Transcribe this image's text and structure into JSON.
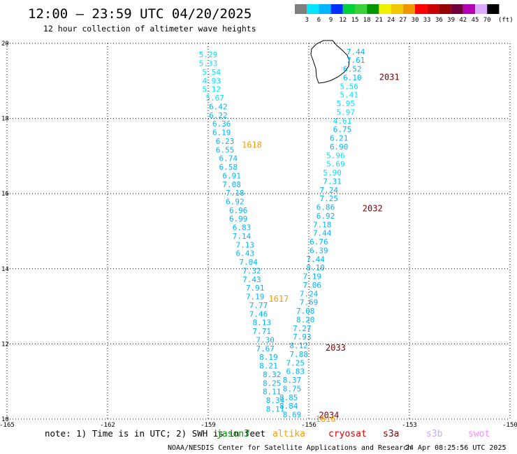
{
  "header": {
    "title": "12:00 — 23:59 UTC 04/20/2025",
    "subtitle": "12 hour collection of altimeter wave heights"
  },
  "colorbar": {
    "unit": "(ft)",
    "ticks": [
      "3",
      "6",
      "9",
      "12",
      "15",
      "18",
      "21",
      "24",
      "27",
      "30",
      "33",
      "36",
      "39",
      "42",
      "45",
      "70"
    ],
    "colors": [
      "#7f7f7f",
      "#00e5ff",
      "#00b4ff",
      "#0030ff",
      "#00d23c",
      "#3cd23c",
      "#009600",
      "#f0f000",
      "#f0c800",
      "#f09600",
      "#ff0000",
      "#c80000",
      "#960000",
      "#6e003c",
      "#b400b4",
      "#dcaaff",
      "#000000"
    ]
  },
  "footer": {
    "note": "note: 1) Time is in UTC; 2) SWH is in feet",
    "satellites": [
      {
        "name": "jason3",
        "color": "#009600"
      },
      {
        "name": "altika",
        "color": "#ff9900"
      },
      {
        "name": "cryosat",
        "color": "#e00000"
      },
      {
        "name": "s3a",
        "color": "#8b0000"
      },
      {
        "name": "s3b",
        "color": "#c8a8ff"
      },
      {
        "name": "swot",
        "color": "#ff88ff"
      }
    ],
    "credit": "NOAA/NESDIS Center for Satellite Applications and Research",
    "timestamp": "24 Apr 08:25:56 UTC 2025"
  },
  "chart_data": {
    "type": "scatter",
    "title": "12:00 — 23:59 UTC 04/20/2025",
    "subtitle": "12 hour collection of altimeter wave heights",
    "xlim": [
      -165,
      -150
    ],
    "ylim": [
      10,
      20
    ],
    "x_ticks": [
      "-165",
      "-162",
      "-159",
      "-156",
      "-153",
      "-150"
    ],
    "y_ticks": [
      "10",
      "12",
      "14",
      "16",
      "18",
      "20"
    ],
    "grid": true,
    "pass_labels": [
      {
        "label": "2031",
        "lon": -153.9,
        "lat": 19.1,
        "color": "#7a0000"
      },
      {
        "label": "1618",
        "lon": -158.0,
        "lat": 17.3,
        "color": "#ff9900"
      },
      {
        "label": "2032",
        "lon": -154.4,
        "lat": 15.6,
        "color": "#7a0000"
      },
      {
        "label": "1617",
        "lon": -157.2,
        "lat": 13.2,
        "color": "#ff9900"
      },
      {
        "label": "2033",
        "lon": -155.5,
        "lat": 11.9,
        "color": "#7a0000"
      },
      {
        "label": "2034",
        "lon": -155.7,
        "lat": 10.1,
        "color": "#7a0000"
      },
      {
        "label": "1616",
        "lon": -155.8,
        "lat": 10.0,
        "color": "#ff9900"
      }
    ],
    "series": [
      {
        "name": "1618",
        "points": [
          {
            "lon": -159.0,
            "lat": 19.7,
            "swh": 5.29
          },
          {
            "lon": -159.0,
            "lat": 19.47,
            "swh": 5.33
          },
          {
            "lon": -158.9,
            "lat": 19.24,
            "swh": 5.54
          },
          {
            "lon": -158.9,
            "lat": 19.01,
            "swh": 4.93
          },
          {
            "lon": -158.9,
            "lat": 18.78,
            "swh": 5.12
          },
          {
            "lon": -158.8,
            "lat": 18.55,
            "swh": 5.67
          },
          {
            "lon": -158.7,
            "lat": 18.32,
            "swh": 6.42
          },
          {
            "lon": -158.7,
            "lat": 18.09,
            "swh": 6.22
          },
          {
            "lon": -158.6,
            "lat": 17.86,
            "swh": 6.36
          },
          {
            "lon": -158.6,
            "lat": 17.63,
            "swh": 6.19
          },
          {
            "lon": -158.5,
            "lat": 17.4,
            "swh": 6.23
          },
          {
            "lon": -158.5,
            "lat": 17.17,
            "swh": 6.55
          },
          {
            "lon": -158.4,
            "lat": 16.94,
            "swh": 6.74
          },
          {
            "lon": -158.4,
            "lat": 16.71,
            "swh": 6.58
          },
          {
            "lon": -158.3,
            "lat": 16.48,
            "swh": 6.91
          },
          {
            "lon": -158.3,
            "lat": 16.25,
            "swh": 7.08
          },
          {
            "lon": -158.2,
            "lat": 16.02,
            "swh": 7.18
          },
          {
            "lon": -158.2,
            "lat": 15.79,
            "swh": 6.92
          },
          {
            "lon": -158.1,
            "lat": 15.56,
            "swh": 6.96
          },
          {
            "lon": -158.1,
            "lat": 15.33,
            "swh": 6.99
          },
          {
            "lon": -158.0,
            "lat": 15.1,
            "swh": 6.83
          },
          {
            "lon": -158.0,
            "lat": 14.87,
            "swh": 7.14
          },
          {
            "lon": -157.9,
            "lat": 14.64,
            "swh": 7.13
          },
          {
            "lon": -157.9,
            "lat": 14.41,
            "swh": 6.43
          },
          {
            "lon": -157.8,
            "lat": 14.18,
            "swh": 7.04
          },
          {
            "lon": -157.7,
            "lat": 13.95,
            "swh": 7.32
          },
          {
            "lon": -157.7,
            "lat": 13.72,
            "swh": 7.43
          },
          {
            "lon": -157.6,
            "lat": 13.49,
            "swh": 7.91
          },
          {
            "lon": -157.6,
            "lat": 13.26,
            "swh": 7.19
          },
          {
            "lon": -157.5,
            "lat": 13.03,
            "swh": 7.77
          },
          {
            "lon": -157.5,
            "lat": 12.8,
            "swh": 7.46
          },
          {
            "lon": -157.4,
            "lat": 12.57,
            "swh": 8.13
          },
          {
            "lon": -157.4,
            "lat": 12.34,
            "swh": 7.71
          },
          {
            "lon": -157.3,
            "lat": 12.11,
            "swh": 7.3
          },
          {
            "lon": -157.3,
            "lat": 11.88,
            "swh": 7.67
          },
          {
            "lon": -157.2,
            "lat": 11.65,
            "swh": 8.19
          },
          {
            "lon": -157.2,
            "lat": 11.42,
            "swh": 8.21
          },
          {
            "lon": -157.1,
            "lat": 11.19,
            "swh": 8.32
          },
          {
            "lon": -157.1,
            "lat": 10.96,
            "swh": 8.25
          },
          {
            "lon": -157.1,
            "lat": 10.73,
            "swh": 8.11
          },
          {
            "lon": -157.0,
            "lat": 10.5,
            "swh": 8.34
          },
          {
            "lon": -157.0,
            "lat": 10.27,
            "swh": 8.11
          }
        ]
      },
      {
        "name": "2031",
        "points": [
          {
            "lon": -154.6,
            "lat": 19.78,
            "swh": 7.44
          },
          {
            "lon": -154.6,
            "lat": 19.55,
            "swh": 7.61
          },
          {
            "lon": -154.7,
            "lat": 19.32,
            "swh": 6.52
          },
          {
            "lon": -154.7,
            "lat": 19.09,
            "swh": 6.1
          },
          {
            "lon": -154.8,
            "lat": 18.86,
            "swh": 5.56
          },
          {
            "lon": -154.8,
            "lat": 18.63,
            "swh": 5.41
          },
          {
            "lon": -154.9,
            "lat": 18.4,
            "swh": 5.95
          },
          {
            "lon": -154.9,
            "lat": 18.17,
            "swh": 5.97
          },
          {
            "lon": -155.0,
            "lat": 17.94,
            "swh": 4.61
          },
          {
            "lon": -155.0,
            "lat": 17.71,
            "swh": 6.75
          },
          {
            "lon": -155.1,
            "lat": 17.48,
            "swh": 6.21
          },
          {
            "lon": -155.1,
            "lat": 17.25,
            "swh": 6.9
          },
          {
            "lon": -155.2,
            "lat": 17.02,
            "swh": 5.96
          },
          {
            "lon": -155.2,
            "lat": 16.79,
            "swh": 5.69
          },
          {
            "lon": -155.3,
            "lat": 16.56,
            "swh": 5.9
          },
          {
            "lon": -155.3,
            "lat": 16.33,
            "swh": 7.31
          },
          {
            "lon": -155.4,
            "lat": 16.1,
            "swh": 7.24
          },
          {
            "lon": -155.4,
            "lat": 15.87,
            "swh": 7.25
          },
          {
            "lon": -155.5,
            "lat": 15.64,
            "swh": 6.86
          },
          {
            "lon": -155.5,
            "lat": 15.41,
            "swh": 6.92
          },
          {
            "lon": -155.6,
            "lat": 15.18,
            "swh": 7.18
          },
          {
            "lon": -155.6,
            "lat": 14.95,
            "swh": 7.44
          },
          {
            "lon": -155.7,
            "lat": 14.72,
            "swh": 6.76
          },
          {
            "lon": -155.7,
            "lat": 14.49,
            "swh": 6.39
          },
          {
            "lon": -155.8,
            "lat": 14.26,
            "swh": 7.44
          },
          {
            "lon": -155.8,
            "lat": 14.03,
            "swh": 8.1
          },
          {
            "lon": -155.9,
            "lat": 13.8,
            "swh": 7.19
          },
          {
            "lon": -155.9,
            "lat": 13.57,
            "swh": 7.06
          },
          {
            "lon": -156.0,
            "lat": 13.34,
            "swh": 7.24
          },
          {
            "lon": -156.0,
            "lat": 13.11,
            "swh": 7.69
          },
          {
            "lon": -156.1,
            "lat": 12.88,
            "swh": 7.08
          },
          {
            "lon": -156.1,
            "lat": 12.65,
            "swh": 8.2
          },
          {
            "lon": -156.2,
            "lat": 12.42,
            "swh": 7.27
          },
          {
            "lon": -156.2,
            "lat": 12.19,
            "swh": 7.93
          },
          {
            "lon": -156.3,
            "lat": 11.96,
            "swh": 8.12
          },
          {
            "lon": -156.3,
            "lat": 11.73,
            "swh": 7.88
          },
          {
            "lon": -156.4,
            "lat": 11.5,
            "swh": 7.25
          },
          {
            "lon": -156.4,
            "lat": 11.27,
            "swh": 6.83
          },
          {
            "lon": -156.5,
            "lat": 11.04,
            "swh": 8.37
          },
          {
            "lon": -156.5,
            "lat": 10.81,
            "swh": 8.75
          },
          {
            "lon": -156.6,
            "lat": 10.58,
            "swh": 8.85
          },
          {
            "lon": -156.6,
            "lat": 10.35,
            "swh": 8.84
          },
          {
            "lon": -156.5,
            "lat": 10.12,
            "swh": 8.69
          }
        ]
      }
    ]
  }
}
